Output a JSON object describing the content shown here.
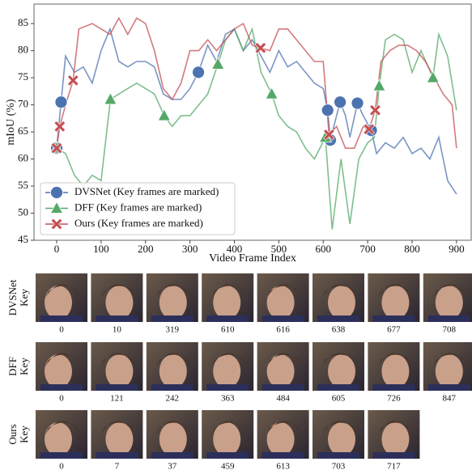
{
  "chart_data": {
    "type": "line",
    "xlabel": "Video Frame Index",
    "ylabel": "mIoU (%)",
    "xlim": [
      -51,
      933
    ],
    "ylim": [
      45,
      88.6
    ],
    "xticks": [
      0,
      100,
      200,
      300,
      400,
      500,
      600,
      700,
      800,
      900
    ],
    "yticks": [
      45,
      50,
      55,
      60,
      65,
      70,
      75,
      80,
      85
    ],
    "legend": "lower left",
    "series": [
      {
        "name": "DVSNet (Key frames are marked)",
        "color": "#4c72b0",
        "marker": "circle",
        "x": [
          0,
          10,
          20,
          40,
          60,
          80,
          100,
          120,
          140,
          160,
          180,
          200,
          220,
          240,
          260,
          280,
          300,
          319,
          340,
          360,
          380,
          400,
          420,
          440,
          460,
          480,
          500,
          520,
          540,
          560,
          580,
          600,
          610,
          616,
          630,
          638,
          650,
          660,
          677,
          690,
          708,
          720,
          740,
          760,
          780,
          800,
          820,
          840,
          860,
          880,
          900
        ],
        "values": [
          62,
          70.5,
          79,
          76,
          77,
          74,
          80,
          84,
          78,
          77,
          78,
          78,
          77,
          72,
          71,
          71,
          73,
          76,
          81,
          78,
          83,
          84,
          80,
          82,
          79,
          76,
          80,
          77,
          78,
          76,
          74,
          73,
          69,
          63.5,
          68,
          70.5,
          68,
          64,
          70.3,
          68,
          65.3,
          61,
          63,
          62,
          64,
          61,
          62,
          60,
          64,
          56,
          53.5
        ],
        "key_x": [
          0,
          10,
          319,
          610,
          616,
          638,
          677,
          708
        ],
        "key_values": [
          62,
          70.5,
          76,
          69,
          63.5,
          70.5,
          70.3,
          65.3
        ]
      },
      {
        "name": "DFF (Key frames are marked)",
        "color": "#55a868",
        "marker": "triangle",
        "x": [
          0,
          20,
          40,
          60,
          80,
          100,
          121,
          140,
          160,
          180,
          200,
          220,
          242,
          260,
          280,
          300,
          320,
          340,
          363,
          380,
          400,
          420,
          440,
          460,
          484,
          500,
          520,
          540,
          560,
          580,
          605,
          620,
          640,
          660,
          680,
          700,
          715,
          726,
          740,
          760,
          780,
          800,
          820,
          847,
          860,
          880,
          900
        ],
        "values": [
          62,
          61,
          57,
          55,
          57,
          56,
          71,
          72,
          73,
          74,
          73,
          72,
          68,
          66,
          68,
          68,
          70,
          72,
          77.5,
          82,
          84,
          80,
          84,
          76,
          72,
          68,
          66,
          65,
          62,
          60,
          64,
          47,
          60,
          48,
          60,
          63,
          64,
          73.5,
          82,
          83,
          82,
          76,
          80,
          75,
          83,
          79,
          69
        ],
        "key_x": [
          0,
          121,
          242,
          363,
          484,
          605,
          726,
          847
        ],
        "key_values": [
          62,
          71,
          68,
          77.5,
          72,
          64,
          73.5,
          75
        ]
      },
      {
        "name": "Ours (Key frames are marked)",
        "color": "#c44e52",
        "marker": "x",
        "x": [
          0,
          7,
          20,
          37,
          50,
          80,
          100,
          120,
          140,
          160,
          180,
          200,
          220,
          240,
          260,
          280,
          300,
          320,
          340,
          360,
          380,
          400,
          420,
          440,
          459,
          480,
          500,
          520,
          540,
          560,
          580,
          600,
          613,
          630,
          650,
          670,
          690,
          703,
          717,
          730,
          750,
          770,
          790,
          810,
          830,
          850,
          870,
          890,
          900
        ],
        "values": [
          62,
          66,
          70,
          74.5,
          84,
          85,
          84,
          83,
          86,
          83,
          86,
          85,
          80,
          73,
          71,
          74,
          80,
          80,
          82,
          80,
          82,
          84,
          85,
          81,
          80.5,
          80,
          84,
          84,
          82,
          80,
          78,
          78,
          64.5,
          66,
          62,
          62,
          66,
          65.5,
          69,
          78,
          80,
          81,
          81,
          80,
          78,
          75,
          72,
          70,
          62
        ],
        "key_x": [
          0,
          7,
          37,
          459,
          613,
          703,
          717
        ],
        "key_values": [
          62,
          66,
          74.5,
          80.5,
          64.5,
          65.5,
          69
        ]
      }
    ]
  },
  "frames": [
    {
      "label": [
        "DVSNet",
        "Key"
      ],
      "indices": [
        0,
        10,
        319,
        610,
        616,
        638,
        677,
        708
      ]
    },
    {
      "label": [
        "DFF",
        "Key"
      ],
      "indices": [
        0,
        121,
        242,
        363,
        484,
        605,
        726,
        847
      ]
    },
    {
      "label": [
        "Ours",
        "Key"
      ],
      "indices": [
        0,
        7,
        37,
        459,
        613,
        703,
        717
      ]
    }
  ]
}
